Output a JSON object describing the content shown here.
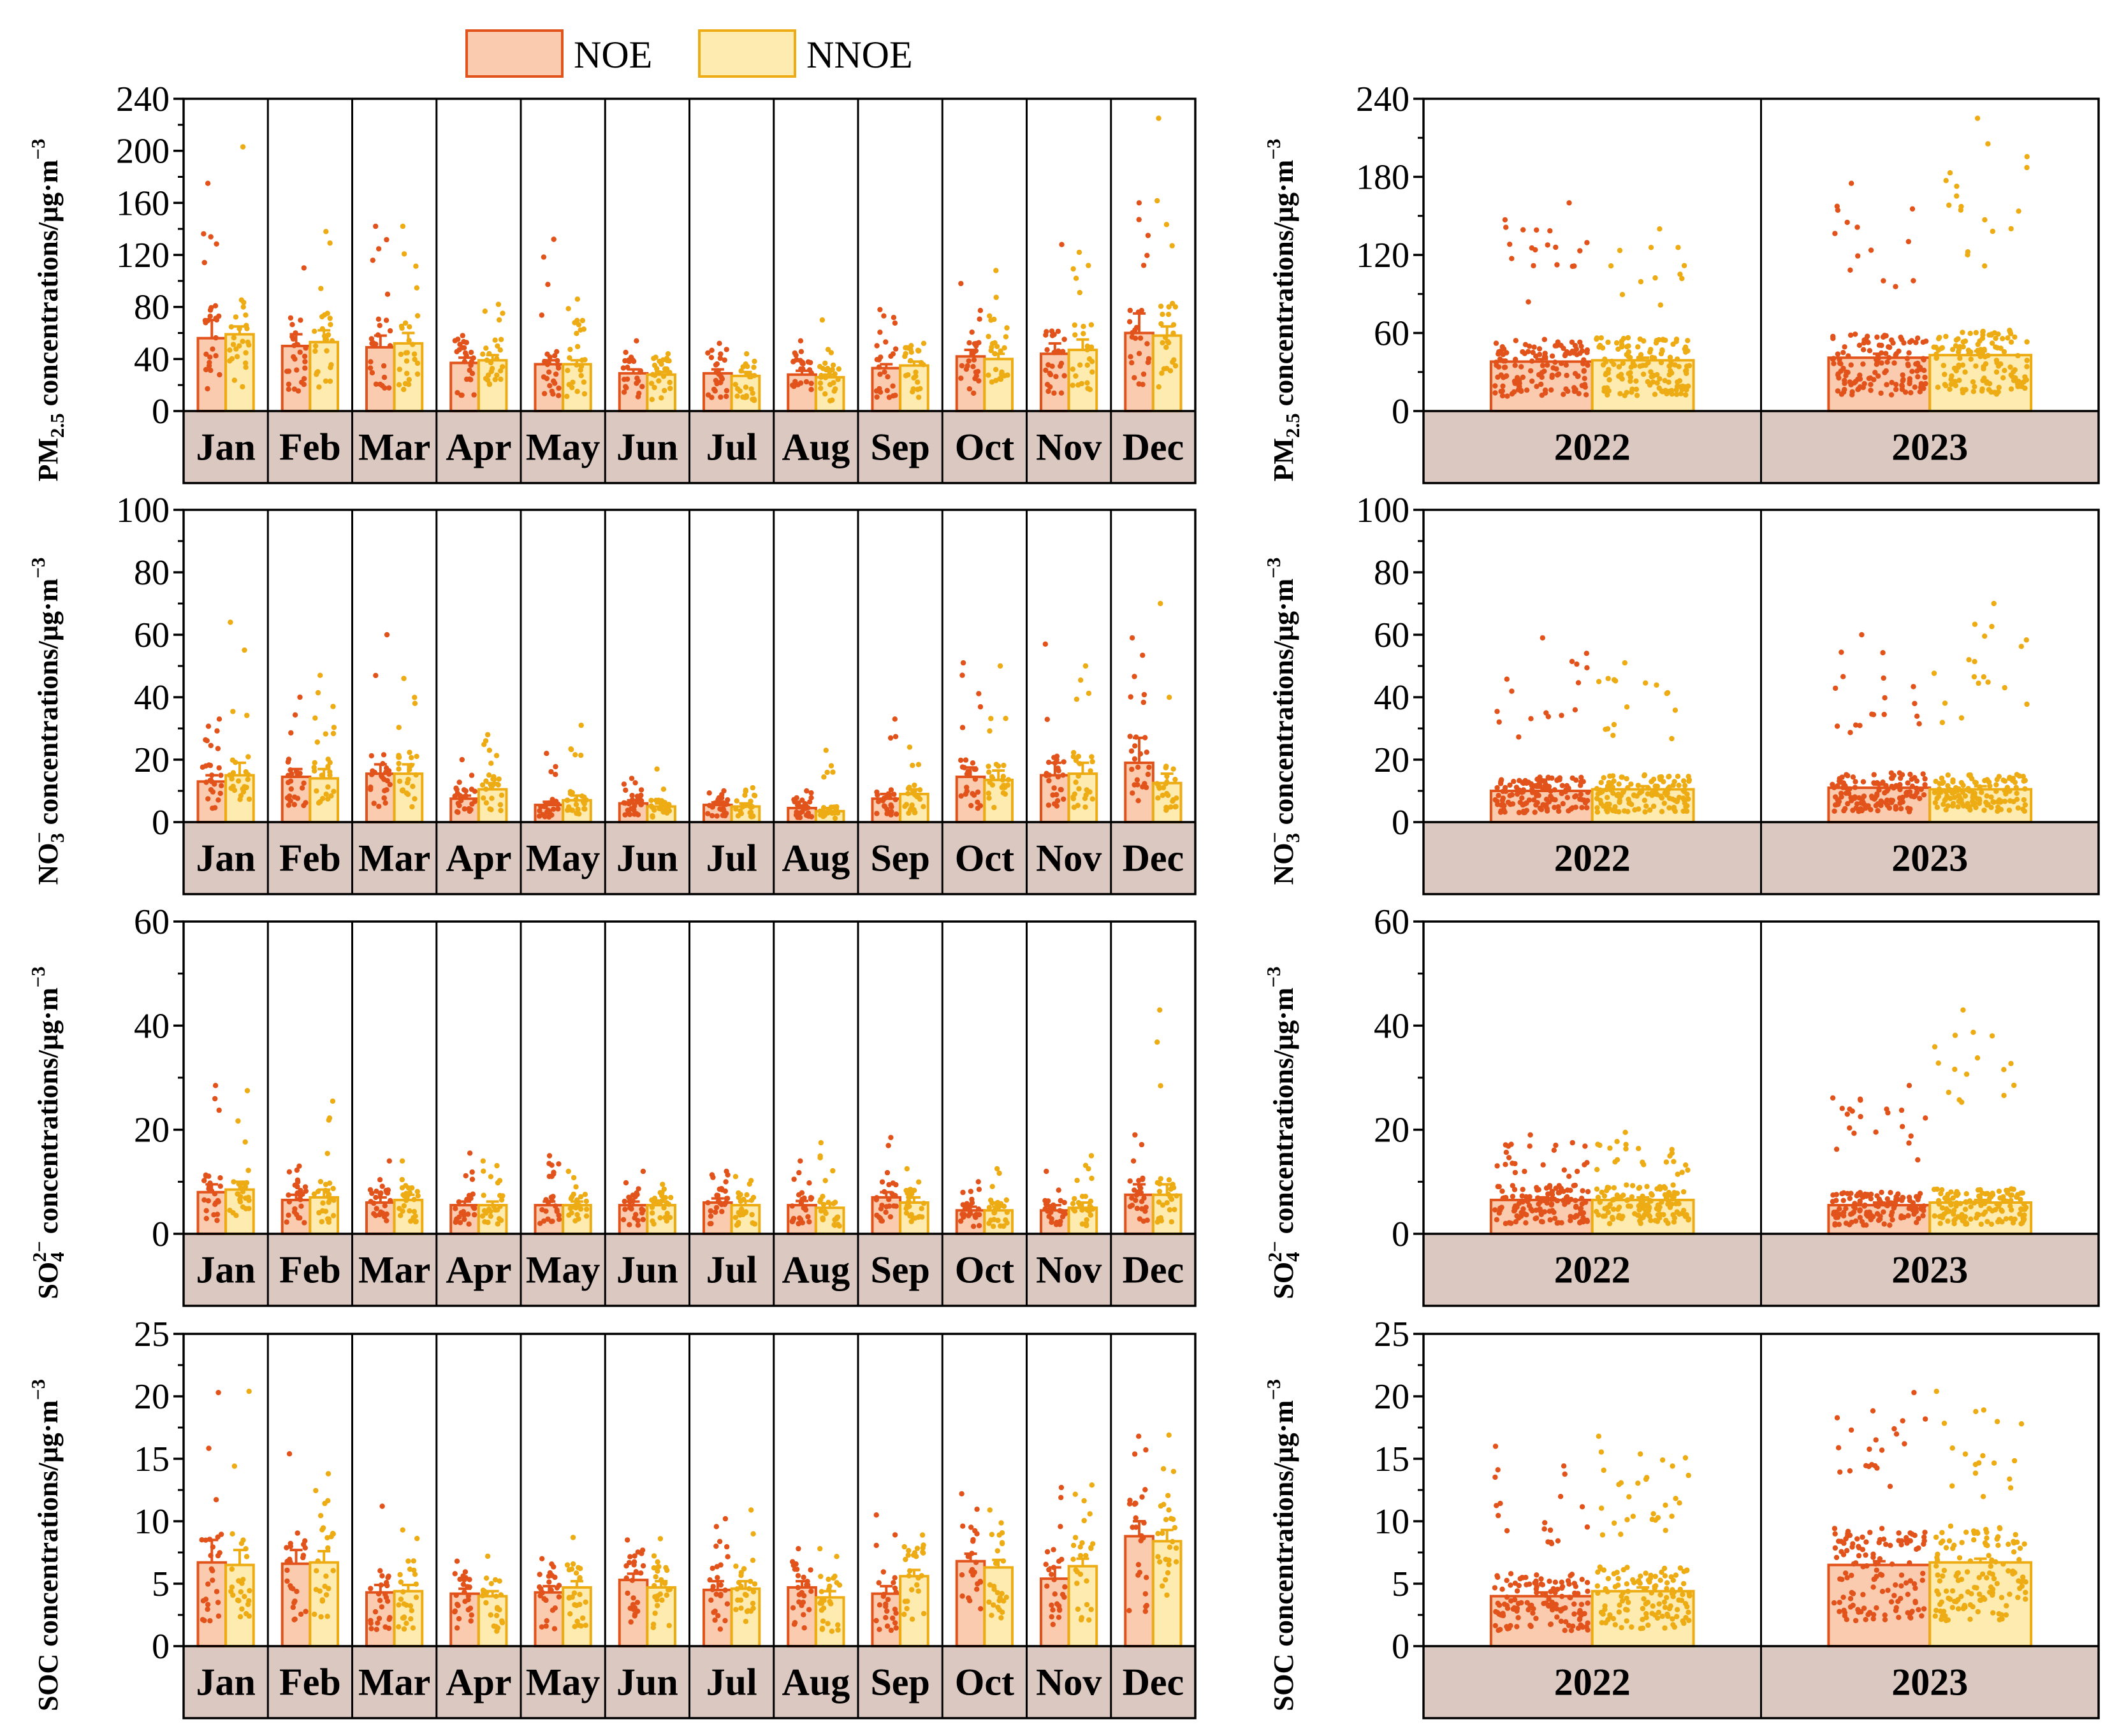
{
  "legend": {
    "items": [
      {
        "label": "NOE",
        "fill": "#fbcbb0",
        "stroke": "#e2531c",
        "dot": "#e2531c"
      },
      {
        "label": "NNOE",
        "fill": "#fdebb0",
        "stroke": "#edac14",
        "dot": "#edac14"
      }
    ]
  },
  "colors": {
    "category_strip": "#dbc8c0",
    "frame": "#000000"
  },
  "chart_data": [
    {
      "id": "pm25-monthly",
      "type": "bar",
      "title": "",
      "ylabel": "PM2.5 concentrations/μg·m−3",
      "ylabel_parts": {
        "main": "PM",
        "sub": "2.5",
        "rest": " concentrations/μg·m",
        "sup": "−3"
      },
      "ylim": [
        0,
        240
      ],
      "yticks": [
        0,
        40,
        80,
        120,
        160,
        200,
        240
      ],
      "categories": [
        "Jan",
        "Feb",
        "Mar",
        "Apr",
        "May",
        "Jun",
        "Jul",
        "Aug",
        "Sep",
        "Oct",
        "Nov",
        "Dec"
      ],
      "series": [
        {
          "name": "NOE",
          "values": [
            56,
            50,
            49,
            37,
            36,
            29,
            29,
            28,
            33,
            42,
            44,
            60
          ],
          "error": [
            14,
            9,
            9,
            4,
            3,
            3,
            3,
            3,
            3,
            5,
            8,
            15
          ],
          "max": [
            175,
            110,
            142,
            58,
            132,
            54,
            52,
            54,
            78,
            98,
            128,
            160
          ]
        },
        {
          "name": "NNOE",
          "values": [
            59,
            53,
            52,
            39,
            36,
            28,
            27,
            26,
            35,
            40,
            47,
            58
          ],
          "error": [
            6,
            9,
            8,
            4,
            3,
            2,
            3,
            2,
            3,
            4,
            8,
            7
          ],
          "max": [
            203,
            138,
            142,
            82,
            86,
            44,
            44,
            70,
            52,
            108,
            122,
            225
          ]
        }
      ]
    },
    {
      "id": "pm25-yearly",
      "type": "bar",
      "title": "",
      "ylabel": "PM2.5 concentrations/μg·m−3",
      "ylabel_parts": {
        "main": "PM",
        "sub": "2.5",
        "rest": " concentrations/μg·m",
        "sup": "−3"
      },
      "ylim": [
        0,
        240
      ],
      "yticks": [
        0,
        60,
        120,
        180,
        240
      ],
      "categories": [
        "2022",
        "2023"
      ],
      "series": [
        {
          "name": "NOE",
          "values": [
            38,
            41
          ],
          "error": [
            2,
            3
          ],
          "max": [
            160,
            175
          ]
        },
        {
          "name": "NNOE",
          "values": [
            39,
            43
          ],
          "error": [
            2,
            3
          ],
          "max": [
            140,
            225
          ]
        }
      ]
    },
    {
      "id": "no3-monthly",
      "type": "bar",
      "title": "",
      "ylabel": "NO3− concentrations/μg·m−3",
      "ylabel_parts": {
        "main": "NO",
        "sub": "3",
        "supion": "−",
        "rest": " concentrations/μg·m",
        "sup": "−3"
      },
      "ylim": [
        0,
        100
      ],
      "yticks": [
        0,
        20,
        40,
        60,
        80,
        100
      ],
      "categories": [
        "Jan",
        "Feb",
        "Mar",
        "Apr",
        "May",
        "Jun",
        "Jul",
        "Aug",
        "Sep",
        "Oct",
        "Nov",
        "Dec"
      ],
      "series": [
        {
          "name": "NOE",
          "values": [
            13,
            14.5,
            15.5,
            7.5,
            5.5,
            6,
            5.5,
            4.5,
            7.5,
            14.5,
            15,
            19
          ],
          "error": [
            2,
            2.5,
            3,
            1,
            1,
            1,
            0.8,
            0.8,
            1.5,
            3,
            4,
            8
          ],
          "max": [
            33,
            40,
            60,
            20,
            22,
            14,
            10,
            10,
            33,
            51,
            57,
            59
          ]
        },
        {
          "name": "NNOE",
          "values": [
            15,
            14,
            15.5,
            10.5,
            7,
            5,
            5,
            3.5,
            9,
            13.5,
            15.5,
            12.5
          ],
          "error": [
            4,
            3,
            3,
            2,
            1.5,
            1,
            1,
            1,
            1.5,
            3,
            3.5,
            3
          ],
          "max": [
            64,
            47,
            46,
            28,
            31,
            17,
            11,
            23,
            24,
            50,
            50,
            70
          ]
        }
      ]
    },
    {
      "id": "no3-yearly",
      "type": "bar",
      "title": "",
      "ylabel": "NO3− concentrations/μg·m−3",
      "ylabel_parts": {
        "main": "NO",
        "sub": "3",
        "supion": "−",
        "rest": " concentrations/μg·m",
        "sup": "−3"
      },
      "ylim": [
        0,
        100
      ],
      "yticks": [
        0,
        20,
        40,
        60,
        80,
        100
      ],
      "categories": [
        "2022",
        "2023"
      ],
      "series": [
        {
          "name": "NOE",
          "values": [
            10,
            11
          ],
          "error": [
            1,
            1
          ],
          "max": [
            59,
            60
          ]
        },
        {
          "name": "NNOE",
          "values": [
            10.5,
            10.5
          ],
          "error": [
            1,
            1
          ],
          "max": [
            51,
            70
          ]
        }
      ]
    },
    {
      "id": "so4-monthly",
      "type": "bar",
      "title": "",
      "ylabel": "SO42− concentrations/μg·m−3",
      "ylabel_parts": {
        "main": "SO",
        "sub": "4",
        "supion": "2−",
        "rest": " concentrations/μg·m",
        "sup": "−3"
      },
      "ylim": [
        0,
        60
      ],
      "yticks": [
        0,
        20,
        40,
        60
      ],
      "categories": [
        "Jan",
        "Feb",
        "Mar",
        "Apr",
        "May",
        "Jun",
        "Jul",
        "Aug",
        "Sep",
        "Oct",
        "Nov",
        "Dec"
      ],
      "series": [
        {
          "name": "NOE",
          "values": [
            8,
            6.5,
            6,
            5.5,
            5.5,
            5.5,
            6,
            5.5,
            7,
            4.5,
            4.5,
            7.5
          ],
          "error": [
            1.5,
            1,
            1,
            0.7,
            0.7,
            0.7,
            0.8,
            0.8,
            1,
            0.7,
            1,
            2
          ],
          "max": [
            28.5,
            13,
            14,
            15.5,
            15,
            12,
            12,
            14,
            18.5,
            10,
            12,
            19
          ]
        },
        {
          "name": "NNOE",
          "values": [
            8.5,
            7,
            6.5,
            5.5,
            5.5,
            5.5,
            5.5,
            5,
            6,
            4.5,
            5,
            7.5
          ],
          "error": [
            1.5,
            1.5,
            1,
            0.7,
            0.7,
            0.7,
            0.8,
            0.8,
            1,
            0.7,
            1,
            2
          ],
          "max": [
            27.5,
            25.5,
            14,
            14,
            12,
            9.5,
            11,
            17.5,
            12.5,
            12.5,
            15,
            43
          ]
        }
      ]
    },
    {
      "id": "so4-yearly",
      "type": "bar",
      "title": "",
      "ylabel": "SO42− concentrations/μg·m−3",
      "ylabel_parts": {
        "main": "SO",
        "sub": "4",
        "supion": "2−",
        "rest": " concentrations/μg·m",
        "sup": "−3"
      },
      "ylim": [
        0,
        60
      ],
      "yticks": [
        0,
        20,
        40,
        60
      ],
      "categories": [
        "2022",
        "2023"
      ],
      "series": [
        {
          "name": "NOE",
          "values": [
            6.5,
            5.5
          ],
          "error": [
            0.5,
            0.5
          ],
          "max": [
            19,
            28.5
          ]
        },
        {
          "name": "NNOE",
          "values": [
            6.5,
            6
          ],
          "error": [
            0.5,
            0.5
          ],
          "max": [
            19.5,
            43
          ]
        }
      ]
    },
    {
      "id": "soc-monthly",
      "type": "bar",
      "title": "",
      "ylabel": "SOC concentrations/μg·m−3",
      "ylabel_parts": {
        "main": "SOC",
        "rest": " concentrations/μg·m",
        "sup": "−3"
      },
      "ylim": [
        0,
        25
      ],
      "yticks": [
        0,
        5,
        10,
        15,
        20,
        25
      ],
      "categories": [
        "Jan",
        "Feb",
        "Mar",
        "Apr",
        "May",
        "Jun",
        "Jul",
        "Aug",
        "Sep",
        "Oct",
        "Nov",
        "Dec"
      ],
      "series": [
        {
          "name": "NOE",
          "values": [
            6.7,
            6.6,
            4.3,
            4.2,
            4.3,
            5.3,
            4.5,
            4.7,
            4.2,
            6.8,
            5.4,
            8.8
          ],
          "error": [
            1.8,
            1.1,
            0.6,
            0.4,
            0.5,
            0.5,
            0.7,
            0.5,
            0.6,
            0.6,
            0.9,
            1.2
          ],
          "max": [
            20.3,
            15.4,
            11.2,
            6.8,
            7,
            8.5,
            10.2,
            7.8,
            10.5,
            12.2,
            12.7,
            16.8
          ]
        },
        {
          "name": "NNOE",
          "values": [
            6.5,
            6.7,
            4.4,
            4,
            4.7,
            4.7,
            4.6,
            3.9,
            5.6,
            6.3,
            6.4,
            8.4
          ],
          "error": [
            1.2,
            0.9,
            0.5,
            0.4,
            0.5,
            0.5,
            0.6,
            0.5,
            0.5,
            0.6,
            0.6,
            0.9
          ],
          "max": [
            20.4,
            13.8,
            9.3,
            7.2,
            8.7,
            8.6,
            10.9,
            7.8,
            8.9,
            10.9,
            12.9,
            16.9
          ]
        }
      ]
    },
    {
      "id": "soc-yearly",
      "type": "bar",
      "title": "",
      "ylabel": "SOC concentrations/μg·m−3",
      "ylabel_parts": {
        "main": "SOC",
        "rest": " concentrations/μg·m",
        "sup": "−3"
      },
      "ylim": [
        0,
        25
      ],
      "yticks": [
        0,
        5,
        10,
        15,
        20,
        25
      ],
      "categories": [
        "2022",
        "2023"
      ],
      "series": [
        {
          "name": "NOE",
          "values": [
            4,
            6.5
          ],
          "error": [
            0.3,
            0.3
          ],
          "max": [
            16,
            20.3
          ]
        },
        {
          "name": "NNOE",
          "values": [
            4.4,
            6.7
          ],
          "error": [
            0.3,
            0.3
          ],
          "max": [
            16.8,
            20.4
          ]
        }
      ]
    }
  ]
}
